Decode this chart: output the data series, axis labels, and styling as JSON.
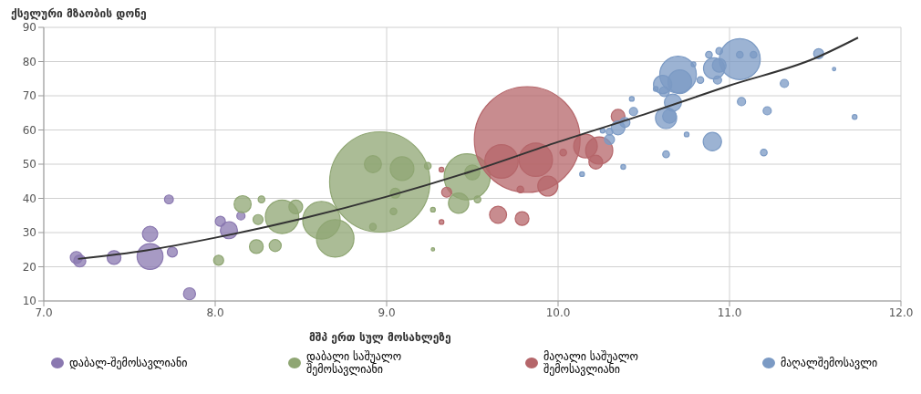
{
  "chart_data": {
    "type": "bubble",
    "ylabel": "ქსელური მზაობის დონე",
    "xlabel": "მშპ ერთ სულ მოსახლეზე",
    "xlim": [
      7,
      12
    ],
    "xticks": [
      {
        "value": 7,
        "label": "7.0"
      },
      {
        "value": 8,
        "label": "8.0"
      },
      {
        "value": 9,
        "label": "9.0"
      },
      {
        "value": 10,
        "label": "10.0"
      },
      {
        "value": 11,
        "label": "11.0"
      },
      {
        "value": 12,
        "label": "12.0"
      }
    ],
    "ylim": [
      10,
      90
    ],
    "yticks": [
      10,
      20,
      30,
      40,
      50,
      60,
      70,
      80,
      90
    ],
    "grid": true,
    "legend": "bottom",
    "series": [
      {
        "type": "bubble",
        "name": "დაბალ-შემოსავლიანი",
        "color": "#8a78b0",
        "x": [
          7.19,
          7.21,
          7.41,
          7.62,
          7.62,
          7.75,
          7.73,
          7.85,
          8.03,
          8.08,
          8.15
        ],
        "values": [
          22.7,
          21.7,
          22.7,
          23,
          29.6,
          24.3,
          39.7,
          12.1,
          33.3,
          30.7,
          34.9
        ],
        "sizes": [
          0.013,
          0.013,
          0.017,
          0.06,
          0.021,
          0.009,
          0.007,
          0.013,
          0.009,
          0.026,
          0.006
        ]
      },
      {
        "type": "bubble",
        "name": "დაბალი საშუალო შემოსავლიანი",
        "color": "#8fa673",
        "x": [
          8.02,
          8.16,
          8.27,
          8.25,
          8.24,
          8.35,
          8.39,
          8.47,
          8.62,
          8.7,
          8.92,
          8.96,
          8.92,
          9.09,
          9.05,
          9.04,
          9.24,
          9.47,
          9.42,
          9.5,
          9.53,
          9.27,
          9.27
        ],
        "values": [
          21.9,
          38.3,
          39.7,
          33.8,
          25.9,
          26.2,
          34.6,
          37.5,
          33.6,
          28.3,
          31.7,
          44.8,
          50,
          48.7,
          41.5,
          36.2,
          49.5,
          46.3,
          38.6,
          47.6,
          39.7,
          36.7,
          25.1
        ],
        "sizes": [
          0.009,
          0.026,
          0.004,
          0.009,
          0.017,
          0.013,
          0.1,
          0.017,
          0.126,
          0.126,
          0.004,
          0.9,
          0.026,
          0.05,
          0.009,
          0.004,
          0.004,
          0.19,
          0.037,
          0.02,
          0.004,
          0.002,
          0.001
        ]
      },
      {
        "type": "bubble",
        "name": "მაღალი საშუალო შემოსავლიანი",
        "color": "#b5666a",
        "x": [
          9.82,
          9.67,
          9.87,
          9.94,
          9.65,
          9.79,
          9.78,
          9.35,
          9.32,
          9.32,
          10.16,
          10.24,
          10.22,
          10.35,
          10.03
        ],
        "values": [
          57.2,
          50.8,
          51.3,
          43.6,
          35.2,
          34.1,
          42.6,
          41.8,
          48.4,
          33.1,
          55.3,
          54,
          50.6,
          64,
          53.4
        ],
        "sizes": [
          1,
          0.1,
          0.1,
          0.036,
          0.026,
          0.017,
          0.004,
          0.009,
          0.002,
          0.002,
          0.05,
          0.066,
          0.017,
          0.017,
          0.004
        ]
      },
      {
        "type": "bubble",
        "name": "მაღალშემოსავლი",
        "color": "#7b9ac4",
        "x": [
          11.06,
          10.7,
          10.71,
          10.61,
          10.91,
          10.94,
          10.88,
          10.94,
          11.06,
          11.14,
          10.93,
          10.83,
          10.79,
          10.62,
          10.67,
          10.65,
          10.63,
          10.44,
          10.39,
          10.35,
          10.3,
          10.26,
          10.3,
          10.57,
          10.43,
          10.75,
          11.32,
          11.07,
          11.22,
          11.52,
          11.61,
          11.73,
          10.9,
          10.63,
          11.2,
          10.38,
          10.14
        ],
        "values": [
          80.7,
          76.2,
          74.1,
          73.3,
          78,
          78.9,
          82,
          83.1,
          82,
          82,
          74.6,
          74.6,
          79.2,
          71.2,
          68,
          64,
          63.5,
          65.4,
          62.2,
          60.6,
          59.5,
          59.8,
          57.2,
          72,
          69.1,
          58.7,
          73.6,
          68.3,
          65.6,
          82.3,
          77.8,
          63.8,
          56.6,
          52.9,
          53.4,
          49.2,
          47.1
        ],
        "sizes": [
          0.15,
          0.12,
          0.05,
          0.03,
          0.04,
          0.017,
          0.004,
          0.004,
          0.004,
          0.004,
          0.006,
          0.004,
          0.002,
          0.009,
          0.026,
          0.017,
          0.04,
          0.006,
          0.009,
          0.017,
          0.004,
          0.002,
          0.009,
          0.002,
          0.002,
          0.002,
          0.006,
          0.006,
          0.006,
          0.009,
          0.001,
          0.002,
          0.03,
          0.004,
          0.004,
          0.002,
          0.002
        ]
      },
      {
        "type": "line",
        "color": "#333333",
        "x": [
          7.2,
          7.6,
          8,
          8.5,
          9,
          9.5,
          10,
          10.5,
          11,
          11.5,
          11.75
        ],
        "values": [
          22.3,
          24.8,
          28.5,
          34,
          40.5,
          48,
          56.5,
          64.5,
          73,
          81,
          87
        ]
      }
    ]
  }
}
